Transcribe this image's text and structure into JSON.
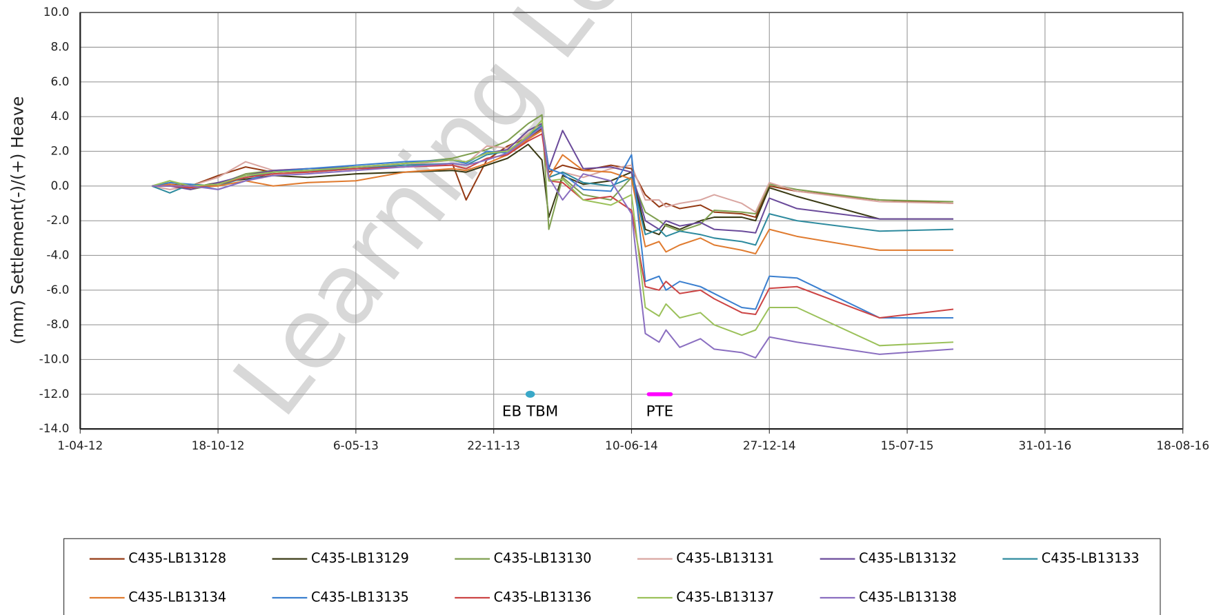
{
  "chart_data": {
    "type": "line",
    "watermark": "Learning Le",
    "y_label": "(mm) Settlement(-)/(+) Heave",
    "xlim": [
      "2012-04-01",
      "2016-08-18"
    ],
    "xticks": [
      {
        "value": "2012-04-01",
        "label": "1-04-12"
      },
      {
        "value": "2012-10-18",
        "label": "18-10-12"
      },
      {
        "value": "2013-05-06",
        "label": "6-05-13"
      },
      {
        "value": "2013-11-22",
        "label": "22-11-13"
      },
      {
        "value": "2014-06-10",
        "label": "10-06-14"
      },
      {
        "value": "2014-12-27",
        "label": "27-12-14"
      },
      {
        "value": "2015-07-15",
        "label": "15-07-15"
      },
      {
        "value": "2016-01-31",
        "label": "31-01-16"
      },
      {
        "value": "2016-08-18",
        "label": "18-08-16"
      }
    ],
    "ylim": [
      -14,
      10
    ],
    "yticks": [
      {
        "value": 10,
        "label": "10.0"
      },
      {
        "value": 8,
        "label": "8.0"
      },
      {
        "value": 6,
        "label": "6.0"
      },
      {
        "value": 4,
        "label": "4.0"
      },
      {
        "value": 2,
        "label": "2.0"
      },
      {
        "value": 0,
        "label": "0.0"
      },
      {
        "value": -2,
        "label": "-2.0"
      },
      {
        "value": -4,
        "label": "-4.0"
      },
      {
        "value": -6,
        "label": "-6.0"
      },
      {
        "value": -8,
        "label": "-8.0"
      },
      {
        "value": -10,
        "label": "-10.0"
      },
      {
        "value": -12,
        "label": "-12.0"
      },
      {
        "value": -14,
        "label": "-14.0"
      }
    ],
    "grid": true,
    "legend": "bottom",
    "x": [
      "2012-07-14",
      "2012-08-09",
      "2012-09-08",
      "2012-10-18",
      "2012-11-27",
      "2013-01-06",
      "2013-02-25",
      "2013-05-06",
      "2013-07-15",
      "2013-09-23",
      "2013-10-13",
      "2013-11-12",
      "2013-12-12",
      "2014-01-11",
      "2014-01-31",
      "2014-02-10",
      "2014-03-02",
      "2014-04-01",
      "2014-05-11",
      "2014-06-10",
      "2014-06-30",
      "2014-07-20",
      "2014-07-30",
      "2014-08-19",
      "2014-09-18",
      "2014-10-08",
      "2014-11-17",
      "2014-12-07",
      "2014-12-27",
      "2015-02-05",
      "2015-06-05",
      "2015-09-20"
    ],
    "series": [
      {
        "name": "C435-LB13128",
        "color": "#943a14",
        "values": [
          0,
          0.1,
          0,
          0.6,
          1.1,
          0.8,
          0.9,
          1.0,
          1.1,
          1.3,
          -0.8,
          1.5,
          2.3,
          2.8,
          3.3,
          0.8,
          1.2,
          0.9,
          1.2,
          1.0,
          -0.5,
          -1.2,
          -1.0,
          -1.3,
          -1.1,
          -1.5,
          -1.6,
          -1.8,
          0.0,
          -0.3,
          -0.8,
          -1.0
        ]
      },
      {
        "name": "C435-LB13129",
        "color": "#3a3a14",
        "values": [
          0,
          0,
          -0.1,
          0.2,
          0.4,
          0.6,
          0.5,
          0.7,
          0.8,
          0.9,
          0.8,
          1.2,
          1.6,
          2.4,
          1.5,
          -1.8,
          0.6,
          0.1,
          0.3,
          0.8,
          -2.5,
          -2.8,
          -2.2,
          -2.5,
          -2.0,
          -1.8,
          -1.8,
          -2.0,
          -0.1,
          -0.6,
          -1.9,
          -1.9
        ]
      },
      {
        "name": "C435-LB13130",
        "color": "#7f9f4f",
        "values": [
          0,
          0.3,
          -0.2,
          0.1,
          0.7,
          0.9,
          0.8,
          1.0,
          1.3,
          1.6,
          1.8,
          2.1,
          2.6,
          3.6,
          4.1,
          -2.5,
          0.5,
          -0.5,
          -0.8,
          0.5,
          -1.5,
          -2.0,
          -2.3,
          -2.6,
          -2.2,
          -1.4,
          -1.5,
          -1.6,
          0.1,
          -0.2,
          -0.8,
          -0.9
        ]
      },
      {
        "name": "C435-LB13131",
        "color": "#d9a5a0",
        "values": [
          0,
          -0.2,
          0,
          0.5,
          1.4,
          0.9,
          1.0,
          1.1,
          1.2,
          1.5,
          1.3,
          2.3,
          2.2,
          3.0,
          3.6,
          0.5,
          0.8,
          0.5,
          1.0,
          1.2,
          -0.8,
          -0.8,
          -1.2,
          -1.0,
          -0.8,
          -0.5,
          -1.0,
          -1.5,
          0.2,
          -0.3,
          -0.9,
          -1.0
        ]
      },
      {
        "name": "C435-LB13132",
        "color": "#6a4a9a",
        "values": [
          0,
          0,
          -0.2,
          0.2,
          0.6,
          0.9,
          1.0,
          1.1,
          1.3,
          1.5,
          1.4,
          1.9,
          2.1,
          3.2,
          3.6,
          1.0,
          3.2,
          1.0,
          1.1,
          0.8,
          -2.0,
          -2.5,
          -2.0,
          -2.3,
          -2.1,
          -2.5,
          -2.6,
          -2.7,
          -0.7,
          -1.3,
          -1.9,
          -1.9
        ]
      },
      {
        "name": "C435-LB13133",
        "color": "#2d8a9e",
        "values": [
          0,
          -0.4,
          0.1,
          0,
          0.5,
          0.8,
          0.9,
          1.0,
          1.2,
          1.3,
          1.2,
          1.8,
          2.0,
          2.9,
          3.5,
          0.5,
          0.8,
          0.2,
          0,
          0.5,
          -2.8,
          -2.5,
          -2.9,
          -2.6,
          -2.8,
          -3.0,
          -3.2,
          -3.4,
          -1.6,
          -2.0,
          -2.6,
          -2.5
        ]
      },
      {
        "name": "C435-LB13134",
        "color": "#e07b2f",
        "values": [
          0,
          0.1,
          -0.1,
          0,
          0.3,
          0,
          0.2,
          0.3,
          0.8,
          1.0,
          0.9,
          1.3,
          1.8,
          2.7,
          3.2,
          0.5,
          1.8,
          0.9,
          0.8,
          0.4,
          -3.5,
          -3.2,
          -3.8,
          -3.4,
          -3.0,
          -3.4,
          -3.7,
          -3.9,
          -2.5,
          -2.9,
          -3.7,
          -3.7
        ]
      },
      {
        "name": "C435-LB13135",
        "color": "#3a7fcf",
        "values": [
          0,
          0.2,
          0.1,
          -0.2,
          0.3,
          0.8,
          1.0,
          1.2,
          1.4,
          1.5,
          1.3,
          2.0,
          1.9,
          2.8,
          3.4,
          1.0,
          0.7,
          -0.2,
          -0.3,
          1.8,
          -5.5,
          -5.2,
          -6.0,
          -5.5,
          -5.8,
          -6.2,
          -7.0,
          -7.1,
          -5.2,
          -5.3,
          -7.6,
          -7.6
        ]
      },
      {
        "name": "C435-LB13136",
        "color": "#cc4444",
        "values": [
          0,
          0,
          -0.1,
          0.1,
          0.5,
          0.7,
          0.8,
          1.0,
          1.1,
          1.2,
          1.0,
          1.6,
          1.8,
          2.6,
          3.0,
          0.3,
          0.2,
          -0.8,
          -0.6,
          -1.4,
          -5.8,
          -6.0,
          -5.5,
          -6.2,
          -6.0,
          -6.5,
          -7.3,
          -7.4,
          -5.9,
          -5.8,
          -7.6,
          -7.1
        ]
      },
      {
        "name": "C435-LB13137",
        "color": "#9bc15a",
        "values": [
          0,
          0.3,
          0,
          0.1,
          0.6,
          0.8,
          0.9,
          1.1,
          1.3,
          1.5,
          1.4,
          1.9,
          2.0,
          2.9,
          3.8,
          0.3,
          0.4,
          -0.8,
          -1.1,
          -0.5,
          -7.0,
          -7.5,
          -6.8,
          -7.6,
          -7.3,
          -8.0,
          -8.6,
          -8.3,
          -7.0,
          -7.0,
          -9.2,
          -9.0
        ]
      },
      {
        "name": "C435-LB13138",
        "color": "#8a6ec0",
        "values": [
          0,
          0,
          0,
          -0.2,
          0.3,
          0.6,
          0.7,
          0.9,
          1.1,
          1.3,
          1.2,
          1.5,
          1.9,
          2.8,
          3.4,
          0.5,
          -0.8,
          0.7,
          0.3,
          -1.6,
          -8.5,
          -9.0,
          -8.3,
          -9.3,
          -8.8,
          -9.4,
          -9.6,
          -9.9,
          -8.7,
          -9.0,
          -9.7,
          -9.4
        ]
      }
    ],
    "annotations": [
      {
        "text": "EB TBM",
        "x": "2014-01-14",
        "y": -12,
        "color": "#3aa8c8"
      },
      {
        "text": "PTE",
        "x": [
          "2014-07-05",
          "2014-08-06"
        ],
        "y": -12,
        "color": "#ff00ff"
      }
    ]
  }
}
